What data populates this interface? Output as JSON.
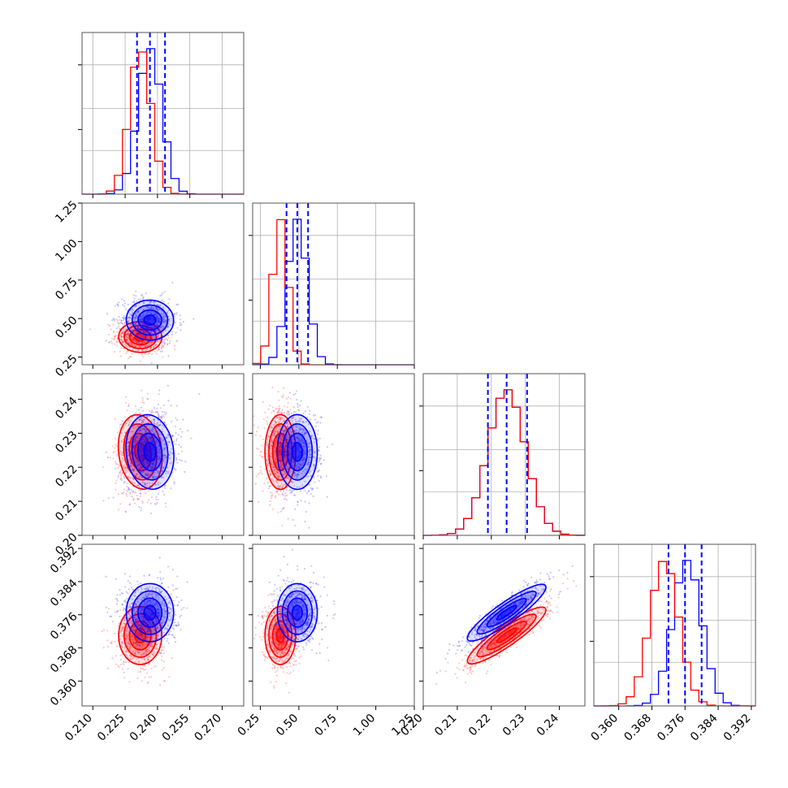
{
  "chart_data": {
    "type": "corner",
    "title": "",
    "colors": {
      "series_a": "#0000ff",
      "series_b": "#ff0000"
    },
    "grid": true,
    "series": [
      {
        "color": "#0000ff"
      },
      {
        "color": "#ff0000"
      }
    ],
    "parameters": [
      {
        "range": [
          0.205,
          0.28
        ],
        "ticks": [
          0.21,
          0.225,
          0.24,
          0.255,
          0.27
        ],
        "tick_labels": [
          "0.210",
          "0.225",
          "0.240",
          "0.255",
          "0.270"
        ],
        "quantiles": [
          0.2305,
          0.2365,
          0.2435
        ],
        "series_mean": [
          0.2365,
          0.232
        ],
        "series_sd": [
          0.0055,
          0.005
        ]
      },
      {
        "range": [
          0.2,
          1.25
        ],
        "ticks": [
          0.25,
          0.5,
          0.75,
          1.0,
          1.25
        ],
        "tick_labels": [
          "0.25",
          "0.50",
          "0.75",
          "1.00",
          "1.25"
        ],
        "quantiles": [
          0.42,
          0.49,
          0.56
        ],
        "series_mean": [
          0.49,
          0.38
        ],
        "series_sd": [
          0.065,
          0.05
        ]
      },
      {
        "range": [
          0.2,
          0.2475
        ],
        "ticks": [
          0.2,
          0.21,
          0.22,
          0.23,
          0.24
        ],
        "tick_labels": [
          "0.20",
          "0.21",
          "0.22",
          "0.23",
          "0.24"
        ],
        "quantiles": [
          0.219,
          0.2245,
          0.2305
        ],
        "series_mean": [
          0.2245,
          0.2245
        ],
        "series_sd": [
          0.0055,
          0.0055
        ]
      },
      {
        "range": [
          0.354,
          0.393
        ],
        "ticks": [
          0.36,
          0.368,
          0.376,
          0.384,
          0.392
        ],
        "tick_labels": [
          "0.360",
          "0.368",
          "0.376",
          "0.384",
          "0.392"
        ],
        "quantiles": [
          0.372,
          0.376,
          0.38
        ],
        "series_mean": [
          0.3765,
          0.371
        ],
        "series_sd": [
          0.0035,
          0.0035
        ]
      }
    ],
    "correlations": {
      "1-0": [
        -0.1,
        -0.1
      ],
      "2-0": [
        0.15,
        0.15
      ],
      "2-1": [
        0.0,
        0.0
      ],
      "3-0": [
        0.0,
        0.0
      ],
      "3-1": [
        0.0,
        0.0
      ],
      "3-2": [
        0.9,
        0.9
      ]
    }
  }
}
